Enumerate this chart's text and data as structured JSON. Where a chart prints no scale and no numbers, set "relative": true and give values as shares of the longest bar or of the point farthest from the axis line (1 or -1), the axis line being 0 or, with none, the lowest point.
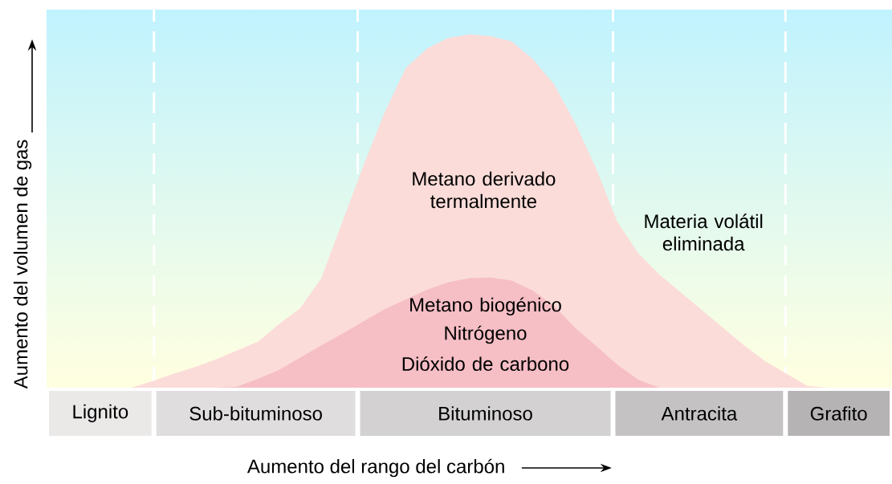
{
  "chart_data": {
    "type": "area",
    "relative": true,
    "xlabel": "Aumento del rango del carbón",
    "ylabel": "Aumento del volumen de gas",
    "categories": [
      null,
      null,
      null,
      null,
      null,
      null,
      null,
      null,
      null,
      null,
      null,
      null,
      null,
      null,
      null,
      null,
      null,
      null,
      null,
      null,
      null,
      null,
      null,
      null,
      null,
      null,
      null,
      null,
      null,
      null,
      null,
      null,
      null,
      null,
      null,
      null,
      null,
      null,
      null,
      null,
      null
    ],
    "series": [
      {
        "color": "#fbdcd9",
        "values": [
          null,
          null,
          null,
          null,
          0,
          0.018,
          0.039,
          0.058,
          0.08,
          0.105,
          0.13,
          0.18,
          0.225,
          0.31,
          0.47,
          0.63,
          0.78,
          0.905,
          0.96,
          0.99,
          1.0,
          0.995,
          0.98,
          0.93,
          0.86,
          0.75,
          0.62,
          0.47,
          0.38,
          0.32,
          0.27,
          0.22,
          0.17,
          0.12,
          0.075,
          0.04,
          0.005,
          0,
          null,
          null,
          null
        ]
      },
      {
        "color": "#f6bec5",
        "values": [
          null,
          null,
          null,
          null,
          null,
          null,
          null,
          null,
          0,
          0.003,
          0.025,
          0.05,
          0.085,
          0.12,
          0.153,
          0.188,
          0.222,
          0.25,
          0.277,
          0.298,
          0.31,
          0.312,
          0.303,
          0.275,
          0.232,
          0.17,
          0.118,
          0.065,
          0.022,
          0,
          null,
          null,
          null,
          null,
          null,
          null,
          null,
          null,
          null,
          null,
          null
        ]
      }
    ],
    "annotations": [
      "Lignito",
      "Sub-bituminoso",
      "Bituminoso",
      "Antracita",
      "Grafito",
      "Metano derivado termalmente",
      "Materia volátil eliminada",
      "Metano biogénico",
      "Nitrógeno",
      "Dióxido de carbono"
    ]
  }
}
